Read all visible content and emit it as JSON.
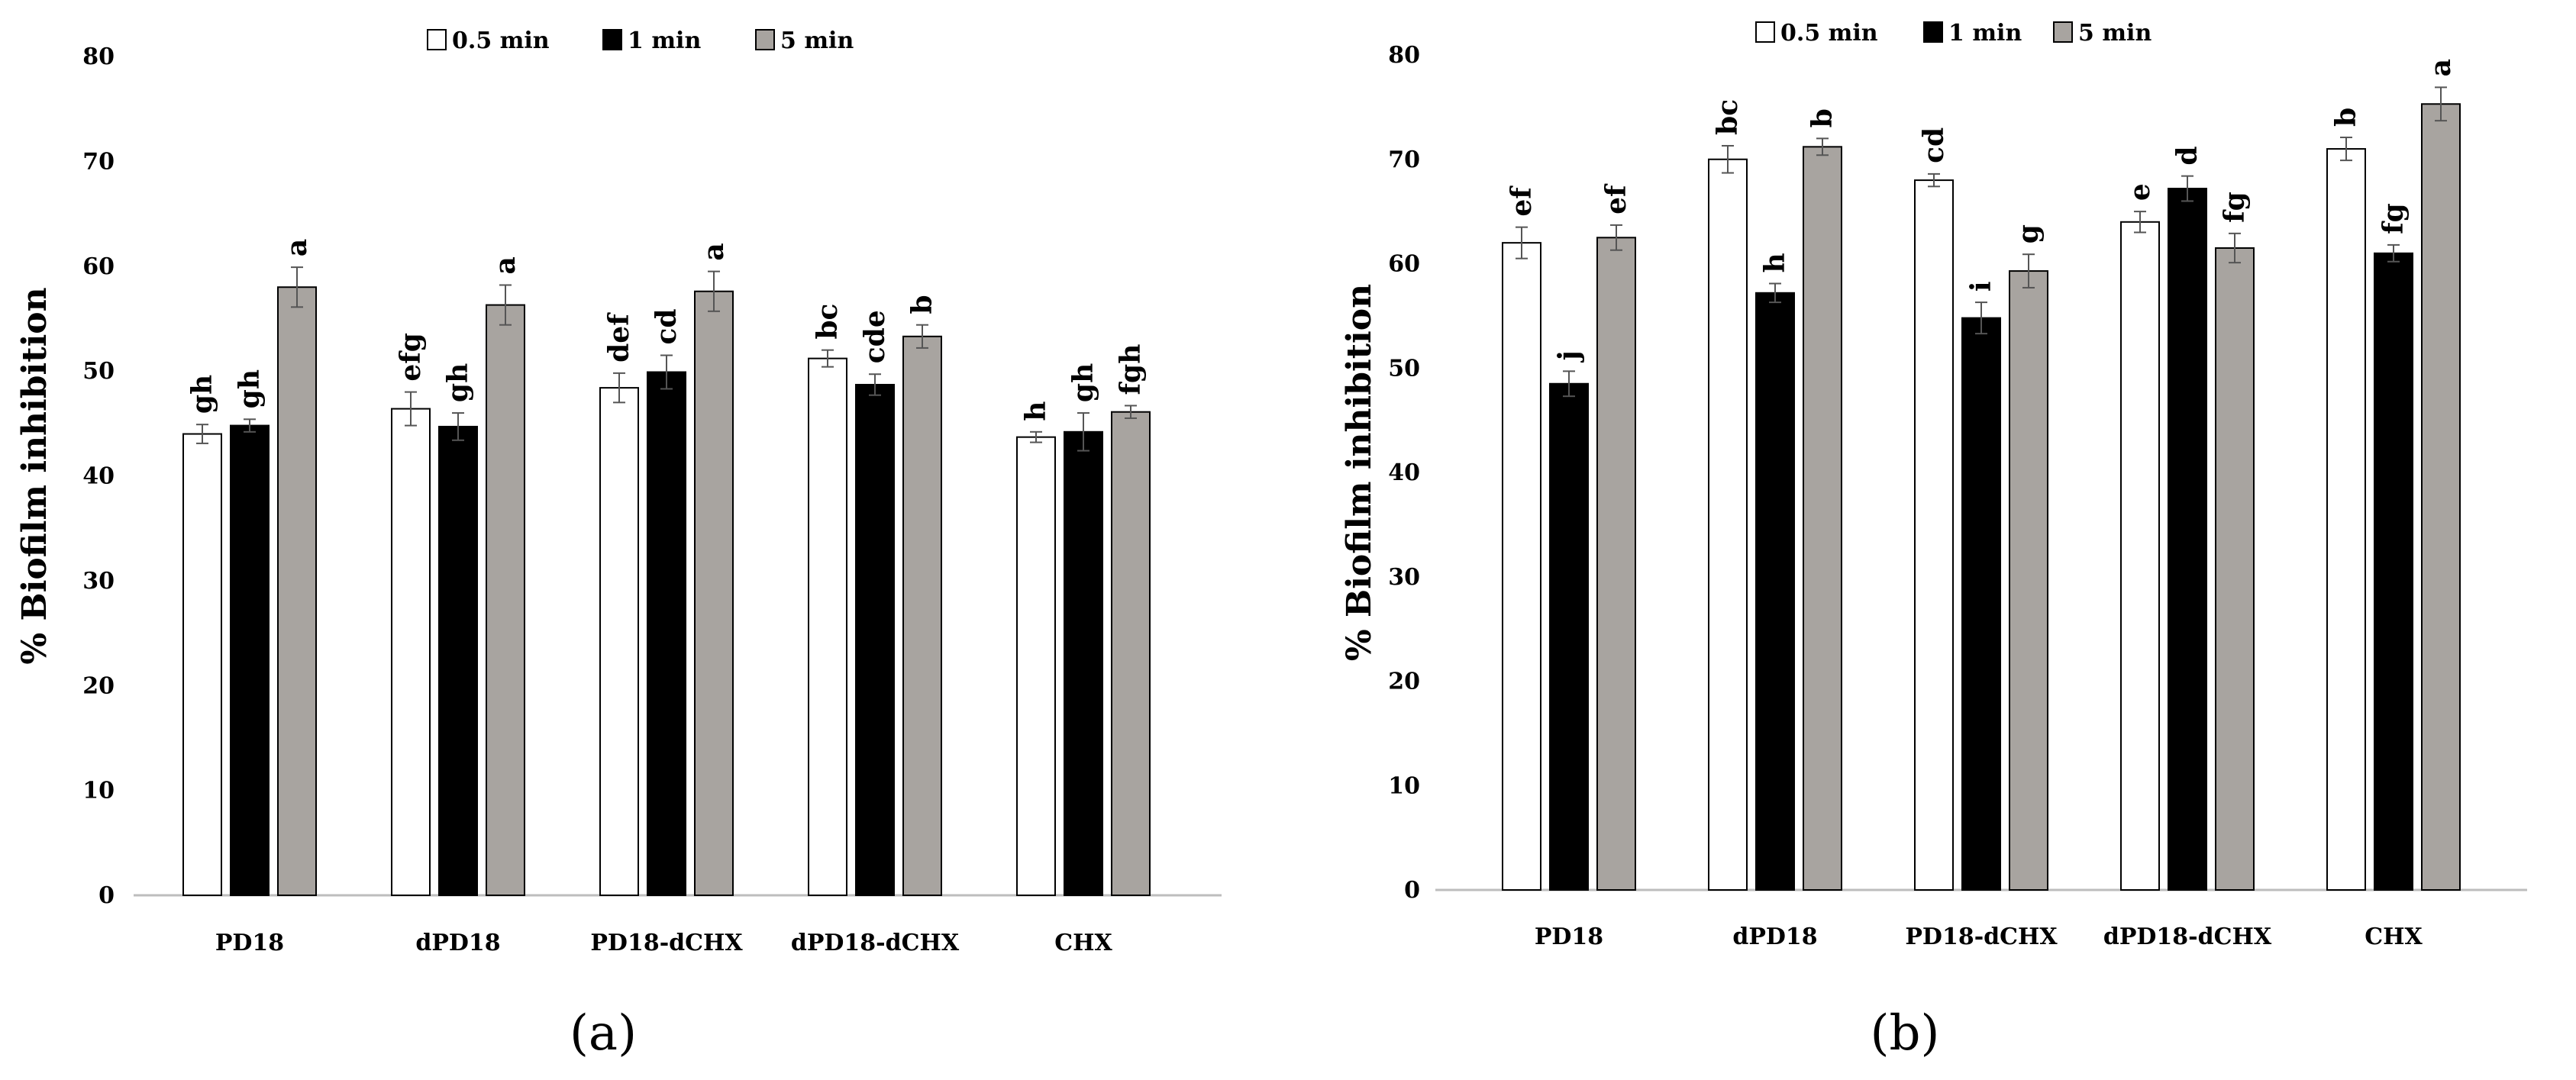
{
  "chart_data": [
    {
      "type": "bar",
      "panel_label": "(a)",
      "ylabel": "% Biofilm inhibition",
      "ylim": [
        0,
        80
      ],
      "yticks": [
        0,
        10,
        20,
        30,
        40,
        50,
        60,
        70,
        80
      ],
      "categories": [
        "PD18",
        "dPD18",
        "PD18-dCHX",
        "dPD18-dCHX",
        "CHX"
      ],
      "legend_position": "top",
      "series": [
        {
          "name": "0.5 min",
          "color": "#ffffff",
          "values": [
            44.0,
            46.4,
            48.4,
            51.2,
            43.7
          ],
          "errors": [
            0.9,
            1.6,
            1.4,
            0.8,
            0.5
          ],
          "labels": [
            "gh",
            "efg",
            "def",
            "bc",
            "h"
          ]
        },
        {
          "name": "1 min",
          "color": "#000000",
          "values": [
            44.8,
            44.7,
            49.9,
            48.7,
            44.2
          ],
          "errors": [
            0.6,
            1.3,
            1.6,
            1.0,
            1.8
          ],
          "labels": [
            "gh",
            "gh",
            "cd",
            "cde",
            "gh"
          ]
        },
        {
          "name": "5 min",
          "color": "#a8a4a0",
          "values": [
            58.0,
            56.3,
            57.6,
            53.3,
            46.1
          ],
          "errors": [
            1.9,
            1.9,
            1.9,
            1.1,
            0.6
          ],
          "labels": [
            "a",
            "a",
            "a",
            "b",
            "fgh"
          ]
        }
      ]
    },
    {
      "type": "bar",
      "panel_label": "(b)",
      "ylabel": "% Biofilm inhibition",
      "ylim": [
        0,
        80
      ],
      "yticks": [
        0,
        10,
        20,
        30,
        40,
        50,
        60,
        70,
        80
      ],
      "categories": [
        "PD18",
        "dPD18",
        "PD18-dCHX",
        "dPD18-dCHX",
        "CHX"
      ],
      "legend_position": "top",
      "series": [
        {
          "name": "0.5 min",
          "color": "#ffffff",
          "values": [
            62.0,
            70.0,
            68.0,
            64.0,
            71.0
          ],
          "errors": [
            1.5,
            1.3,
            0.6,
            1.0,
            1.1
          ],
          "labels": [
            "ef",
            "bc",
            "cd",
            "e",
            "b"
          ]
        },
        {
          "name": "1 min",
          "color": "#000000",
          "values": [
            48.5,
            57.2,
            54.8,
            67.2,
            61.0
          ],
          "errors": [
            1.2,
            0.9,
            1.5,
            1.2,
            0.8
          ],
          "labels": [
            "j",
            "h",
            "i",
            "d",
            "fg"
          ]
        },
        {
          "name": "5 min",
          "color": "#a8a4a0",
          "values": [
            62.5,
            71.2,
            59.3,
            61.5,
            75.3
          ],
          "errors": [
            1.2,
            0.8,
            1.6,
            1.4,
            1.6
          ],
          "labels": [
            "ef",
            "b",
            "g",
            "fg",
            "a"
          ]
        }
      ]
    }
  ]
}
